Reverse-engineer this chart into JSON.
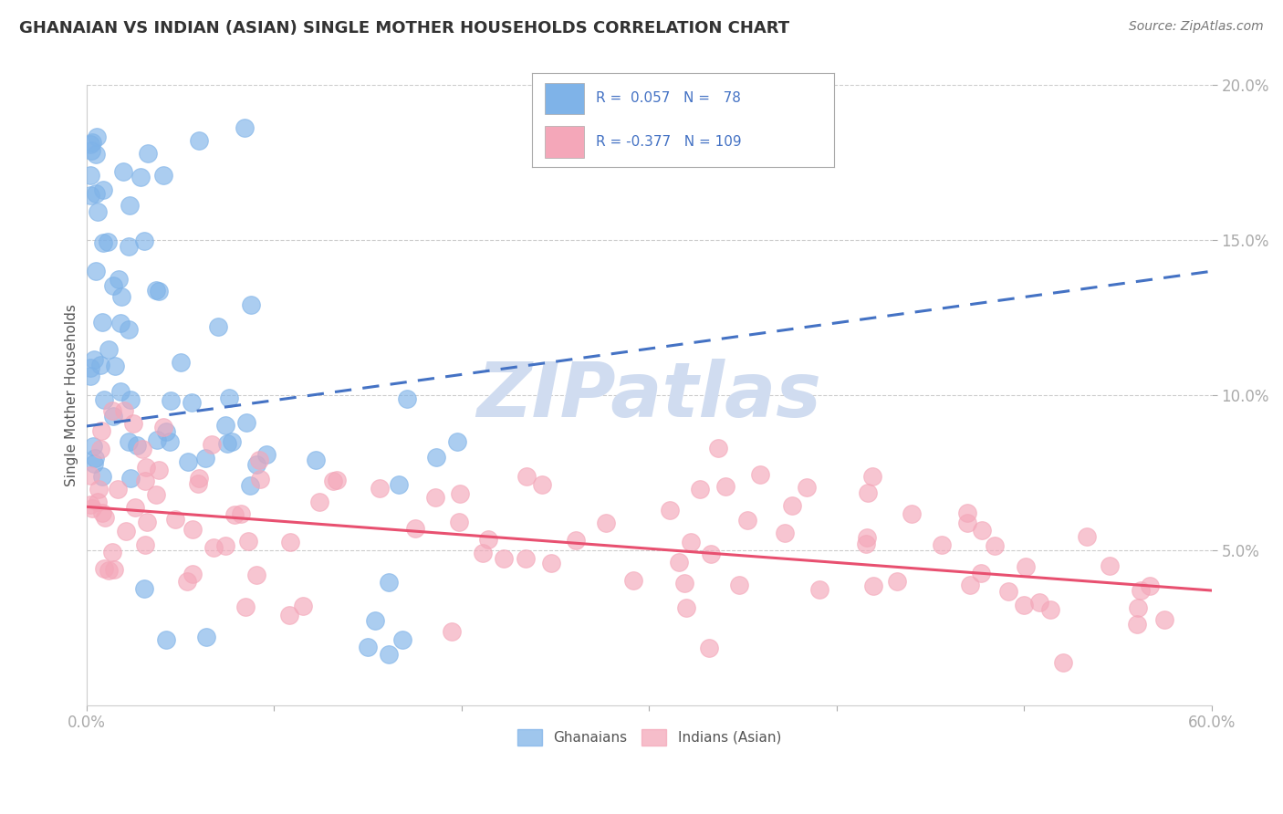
{
  "title": "GHANAIAN VS INDIAN (ASIAN) SINGLE MOTHER HOUSEHOLDS CORRELATION CHART",
  "source": "Source: ZipAtlas.com",
  "ylabel": "Single Mother Households",
  "xlim": [
    0.0,
    0.6
  ],
  "ylim": [
    0.0,
    0.2
  ],
  "xticks": [
    0.0,
    0.1,
    0.2,
    0.3,
    0.4,
    0.5,
    0.6
  ],
  "xticklabels": [
    "0.0%",
    "",
    "",
    "",
    "",
    "",
    "60.0%"
  ],
  "yticks": [
    0.05,
    0.1,
    0.15,
    0.2
  ],
  "yticklabels": [
    "5.0%",
    "10.0%",
    "15.0%",
    "20.0%"
  ],
  "legend_line1": "R =  0.057   N =   78",
  "legend_line2": "R = -0.377   N = 109",
  "blue_scatter_color": "#7FB3E8",
  "pink_scatter_color": "#F4A7B9",
  "blue_line_color": "#4472C4",
  "pink_line_color": "#E85070",
  "tick_color": "#4472C4",
  "watermark_color": "#D0DCF0",
  "grid_color": "#CCCCCC",
  "background_color": "#FFFFFF",
  "blue_trend_x0": 0.0,
  "blue_trend_x1": 0.6,
  "blue_trend_y0": 0.09,
  "blue_trend_y1": 0.14,
  "pink_trend_x0": 0.0,
  "pink_trend_x1": 0.6,
  "pink_trend_y0": 0.064,
  "pink_trend_y1": 0.037,
  "figsize": [
    14.06,
    8.92
  ],
  "dpi": 100
}
